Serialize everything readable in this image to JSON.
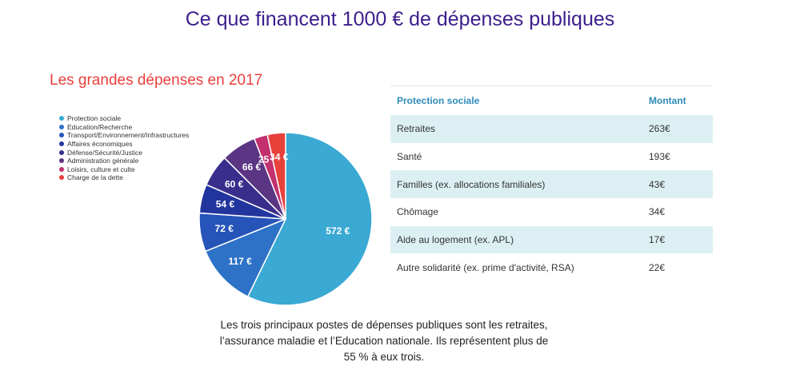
{
  "page": {
    "title": "Ce que financent 1000 € de dépenses publiques",
    "caption": "Les trois principaux postes de dépenses publiques sont les retraites, l’assurance maladie et l’Education nationale. Ils représentent plus de 55 % à eux trois."
  },
  "chart_data": {
    "type": "pie",
    "title": "Les grandes dépenses en 2017",
    "legend_position": "left",
    "unit": "€",
    "slices": [
      {
        "label": "Protection sociale",
        "value": 572,
        "color": "#3aa9d3"
      },
      {
        "label": "Education/Recherche",
        "value": 117,
        "color": "#2e72c7"
      },
      {
        "label": "Transport/Environnement/Infrastructures",
        "value": 72,
        "color": "#2654b9"
      },
      {
        "label": "Affaires économiques",
        "value": 54,
        "color": "#22359e"
      },
      {
        "label": "Défense/Sécurité/Justice",
        "value": 60,
        "color": "#3a2e8c"
      },
      {
        "label": "Administration générale",
        "value": 66,
        "color": "#5b3584"
      },
      {
        "label": "Loisirs, culture et culte",
        "value": 25,
        "color": "#c2306e"
      },
      {
        "label": "Charge de la dette",
        "value": 34,
        "color": "#e8413c"
      }
    ],
    "data_labels": [
      "572 €",
      "117 €",
      "72 €",
      "54 €",
      "60 €",
      "66 €",
      "25 €",
      "34 €"
    ]
  },
  "table": {
    "headers": [
      "Protection sociale",
      "Montant"
    ],
    "rows": [
      [
        "Retraites",
        "263€"
      ],
      [
        "Santé",
        "193€"
      ],
      [
        "Familles (ex. allocations familiales)",
        "43€"
      ],
      [
        "Chômage",
        "34€"
      ],
      [
        "Aide au logement (ex. APL)",
        "17€"
      ],
      [
        "Autre solidarité (ex. prime d'activité, RSA)",
        "22€"
      ]
    ]
  }
}
